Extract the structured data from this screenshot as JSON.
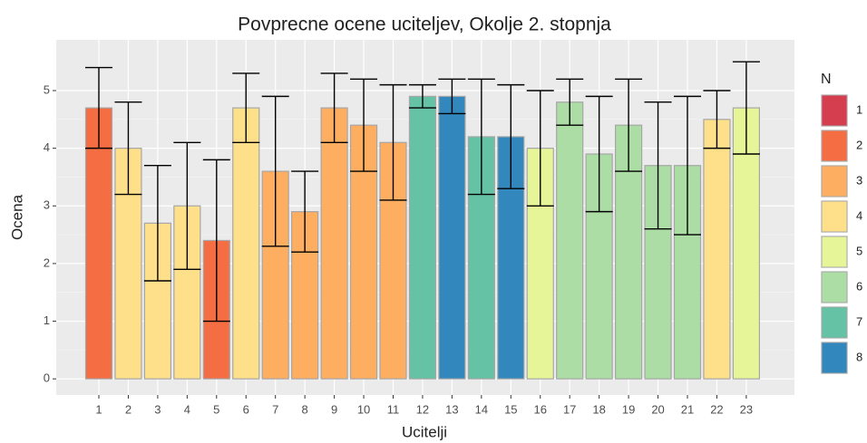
{
  "chart_data": {
    "type": "bar",
    "title": "Povprecne ocene uciteljev, Okolje 2. stopnja",
    "x_label": "Ucitelji",
    "y_label": "Ocena",
    "categories": [
      "1",
      "2",
      "3",
      "4",
      "5",
      "6",
      "7",
      "8",
      "9",
      "10",
      "11",
      "12",
      "13",
      "14",
      "15",
      "16",
      "17",
      "18",
      "19",
      "20",
      "21",
      "22",
      "23"
    ],
    "values": [
      4.7,
      4.0,
      2.7,
      3.0,
      2.4,
      4.7,
      3.6,
      2.9,
      4.7,
      4.4,
      4.1,
      4.9,
      4.9,
      4.2,
      4.2,
      4.0,
      4.8,
      3.9,
      4.4,
      3.7,
      3.7,
      4.5,
      4.7
    ],
    "errors": [
      0.7,
      0.8,
      1.0,
      1.1,
      1.4,
      0.6,
      1.3,
      0.7,
      0.6,
      0.8,
      1.0,
      0.2,
      0.3,
      1.0,
      0.9,
      1.0,
      0.4,
      1.0,
      0.8,
      1.1,
      1.2,
      0.5,
      0.8
    ],
    "n": [
      2,
      4,
      4,
      4,
      2,
      4,
      3,
      3,
      3,
      3,
      3,
      7,
      8,
      7,
      8,
      5,
      6,
      6,
      6,
      6,
      6,
      4,
      5
    ],
    "legend": {
      "title": "N",
      "labels": [
        1,
        2,
        3,
        4,
        5,
        6,
        7,
        8
      ],
      "colors": [
        "#d53e4f",
        "#f46d43",
        "#fdae61",
        "#fee08b",
        "#e6f598",
        "#abdda4",
        "#66c2a5",
        "#3288bd"
      ]
    },
    "ylim": [
      -0.28,
      5.88
    ],
    "yticks": [
      0,
      1,
      2,
      3,
      4,
      5
    ],
    "grid": true
  }
}
